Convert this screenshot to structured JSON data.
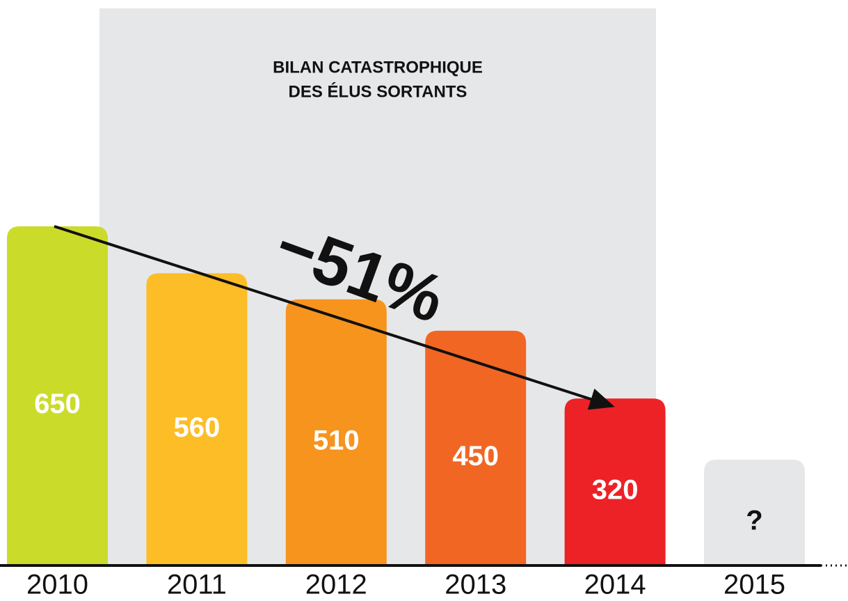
{
  "chart_data": {
    "type": "bar",
    "title": [
      "BILAN CATASTROPHIQUE",
      "DES ÉLUS SORTANTS"
    ],
    "annotation": "−51%",
    "categories": [
      "2010",
      "2011",
      "2012",
      "2013",
      "2014",
      "2015"
    ],
    "values": [
      650,
      560,
      510,
      450,
      320,
      null
    ],
    "value_labels": [
      "650",
      "560",
      "510",
      "450",
      "320",
      "?"
    ],
    "colors": [
      "#cbdb2a",
      "#fdbd27",
      "#f7941e",
      "#f26624",
      "#ec2227",
      "#e6e7e8"
    ]
  }
}
